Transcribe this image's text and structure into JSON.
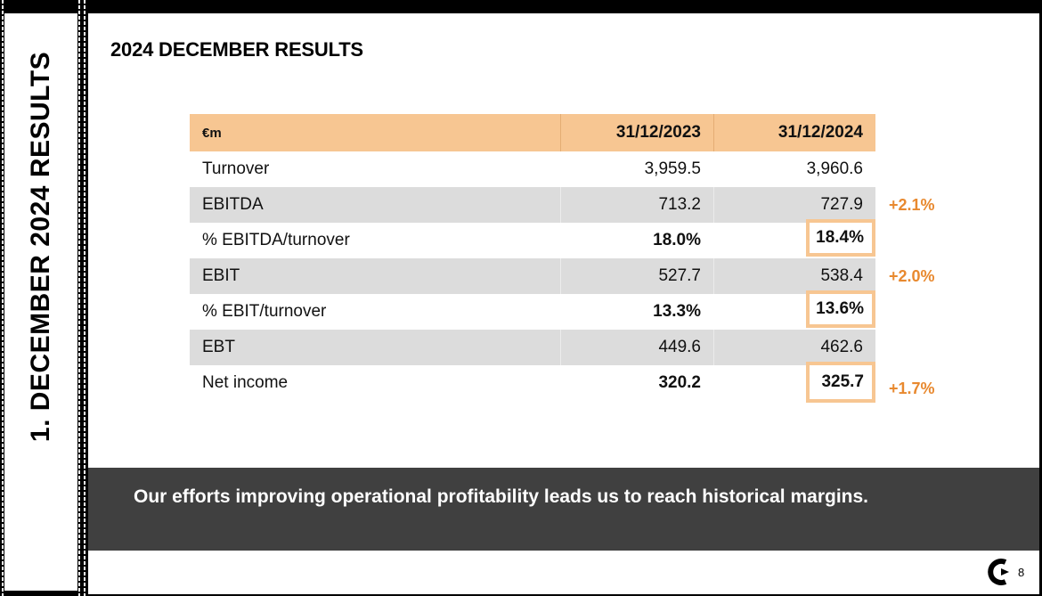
{
  "sidebar": {
    "title": "1. DECEMBER 2024 RESULTS"
  },
  "page_title": "2024 DECEMBER RESULTS",
  "table": {
    "headers": {
      "label": "€m",
      "col_2023": "31/12/2023",
      "col_2024": "31/12/2024"
    },
    "rows": [
      {
        "label": "Turnover",
        "v2023": "3,959.5",
        "v2024": "3,960.6"
      },
      {
        "label": "EBITDA",
        "v2023": "713.2",
        "v2024": "727.9",
        "growth": "+2.1%"
      },
      {
        "label": "% EBITDA/turnover",
        "v2023": "18.0%",
        "v2024": "18.4%"
      },
      {
        "label": "EBIT",
        "v2023": "527.7",
        "v2024": "538.4",
        "growth": "+2.0%"
      },
      {
        "label": "% EBIT/turnover",
        "v2023": "13.3%",
        "v2024": "13.6%"
      },
      {
        "label": "EBT",
        "v2023": "449.6",
        "v2024": "462.6"
      },
      {
        "label": "Net income",
        "v2023": "320.2",
        "v2024": "325.7",
        "growth": "+1.7%"
      }
    ]
  },
  "banner": {
    "text": "Our efforts improving operational profitability leads us to reach historical margins."
  },
  "footer": {
    "page_number": "8",
    "logo_icon": "company-logo-icon"
  },
  "colors": {
    "header_bg": "#f7c692",
    "highlight_border": "#f7c692",
    "growth_text": "#e8892f",
    "banner_bg": "#404040",
    "shaded_row": "#dcdcdc"
  }
}
